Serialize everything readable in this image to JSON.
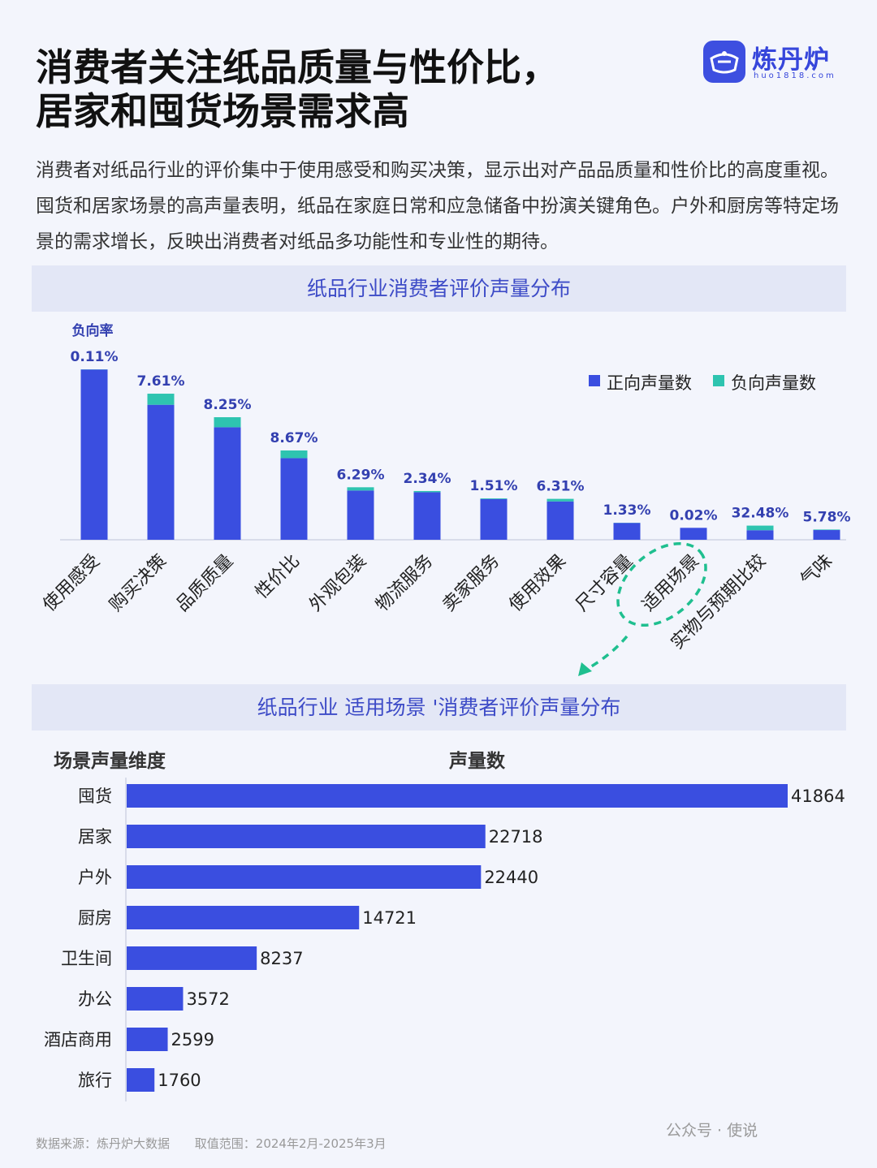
{
  "title": {
    "line1": "消费者关注纸品质量与性价比，",
    "line2": "居家和囤货场景需求高"
  },
  "brand": {
    "name": "炼丹炉",
    "url": "huo1818.com"
  },
  "intro": "消费者对纸品行业的评价集中于使用感受和购买决策，显示出对产品品质量和性价比的高度重视。囤货和居家场景的高声量表明，纸品在家庭日常和应急储备中扮演关键角色。户外和厨房等特定场景的需求增长，反映出消费者对纸品多功能性和专业性的期待。",
  "section1": {
    "title": "纸品行业消费者评价声量分布"
  },
  "section2": {
    "title": "纸品行业 适用场景 '消费者评价声量分布"
  },
  "colors": {
    "positive": "#3a4ee0",
    "negative": "#2ec4b0",
    "accent": "#3646db",
    "highlight": "#1fbf8f"
  },
  "chart_data": [
    {
      "type": "bar",
      "stacked": true,
      "categories": [
        "使用感受",
        "购买决策",
        "品质质量",
        "性价比",
        "外观包装",
        "物流服务",
        "卖家服务",
        "使用效果",
        "尺寸容量",
        "适用场景",
        "实物与预期比较",
        "气味"
      ],
      "series": [
        {
          "name": "正向声量数",
          "values": [
            99.9,
            79.2,
            66.0,
            47.9,
            28.9,
            27.9,
            23.9,
            22.5,
            9.9,
            7.0,
            5.6,
            5.7
          ]
        },
        {
          "name": "负向声量数",
          "values": [
            0.1,
            6.5,
            5.9,
            4.5,
            1.9,
            0.7,
            0.4,
            1.5,
            0.1,
            0.0,
            2.7,
            0.3
          ]
        }
      ],
      "rate_title": "负向率",
      "rates": [
        "0.11%",
        "7.61%",
        "8.25%",
        "8.67%",
        "6.29%",
        "2.34%",
        "1.51%",
        "6.31%",
        "1.33%",
        "0.02%",
        "32.48%",
        "5.78%"
      ],
      "highlight_category": "适用场景",
      "legend": "top-right",
      "yaxis_visible": false,
      "grid": false
    },
    {
      "type": "bar",
      "orientation": "horizontal",
      "dimension_header": "场景声量维度",
      "value_header": "声量数",
      "categories": [
        "囤货",
        "居家",
        "户外",
        "厨房",
        "卫生间",
        "办公",
        "酒店商用",
        "旅行"
      ],
      "values": [
        41864,
        22718,
        22440,
        14721,
        8237,
        3572,
        2599,
        1760
      ],
      "grid": false
    }
  ],
  "footer": {
    "source": "数据来源：炼丹炉大数据",
    "range": "取值范围：2024年2月-2025年3月"
  },
  "watermark": "公众号 · 使说"
}
